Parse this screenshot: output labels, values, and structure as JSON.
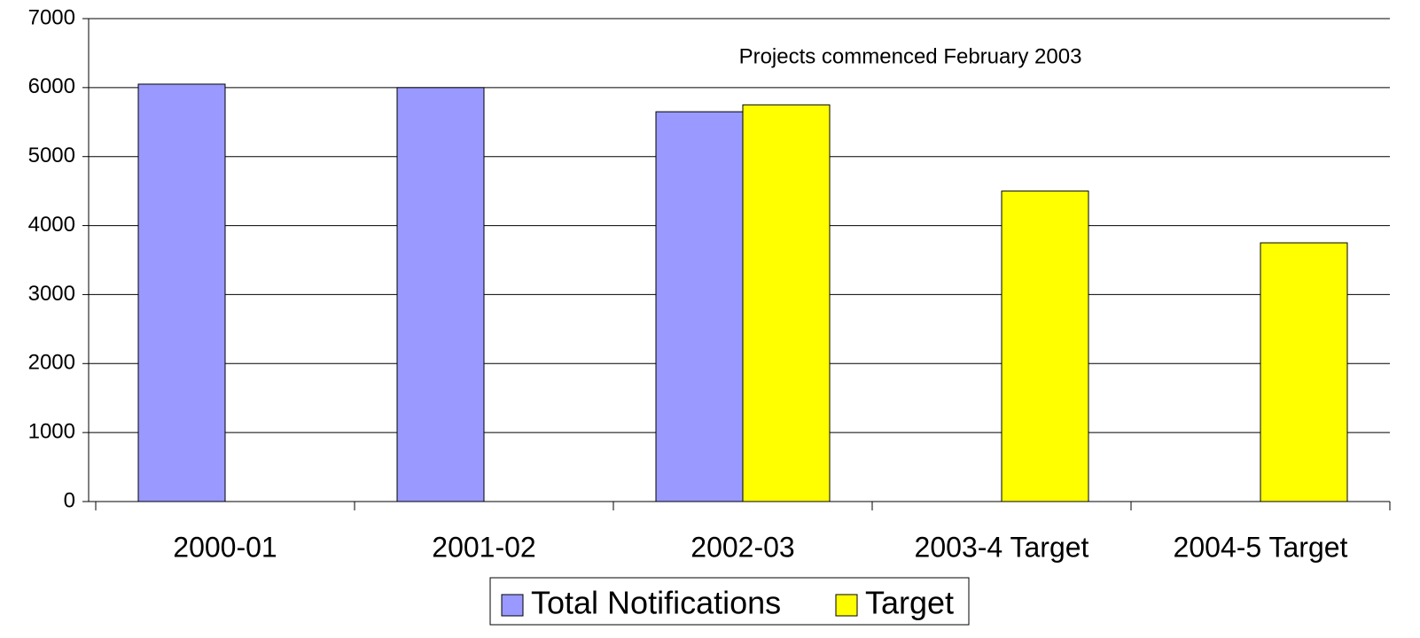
{
  "chart_data": {
    "type": "bar",
    "annotation": "Projects commenced February 2003",
    "categories": [
      "2000-01",
      "2001-02",
      "2002-03",
      "2003-4 Target",
      "2004-5 Target"
    ],
    "series": [
      {
        "name": "Total Notifications",
        "color": "#9999ff",
        "values": [
          6050,
          6000,
          5650,
          null,
          null
        ]
      },
      {
        "name": "Target",
        "color": "#ffff00",
        "values": [
          null,
          null,
          5750,
          4500,
          3750
        ]
      }
    ],
    "ylim": [
      0,
      7000
    ],
    "yticks": [
      0,
      1000,
      2000,
      3000,
      4000,
      5000,
      6000,
      7000
    ],
    "grid": true,
    "legend": "bottom"
  }
}
